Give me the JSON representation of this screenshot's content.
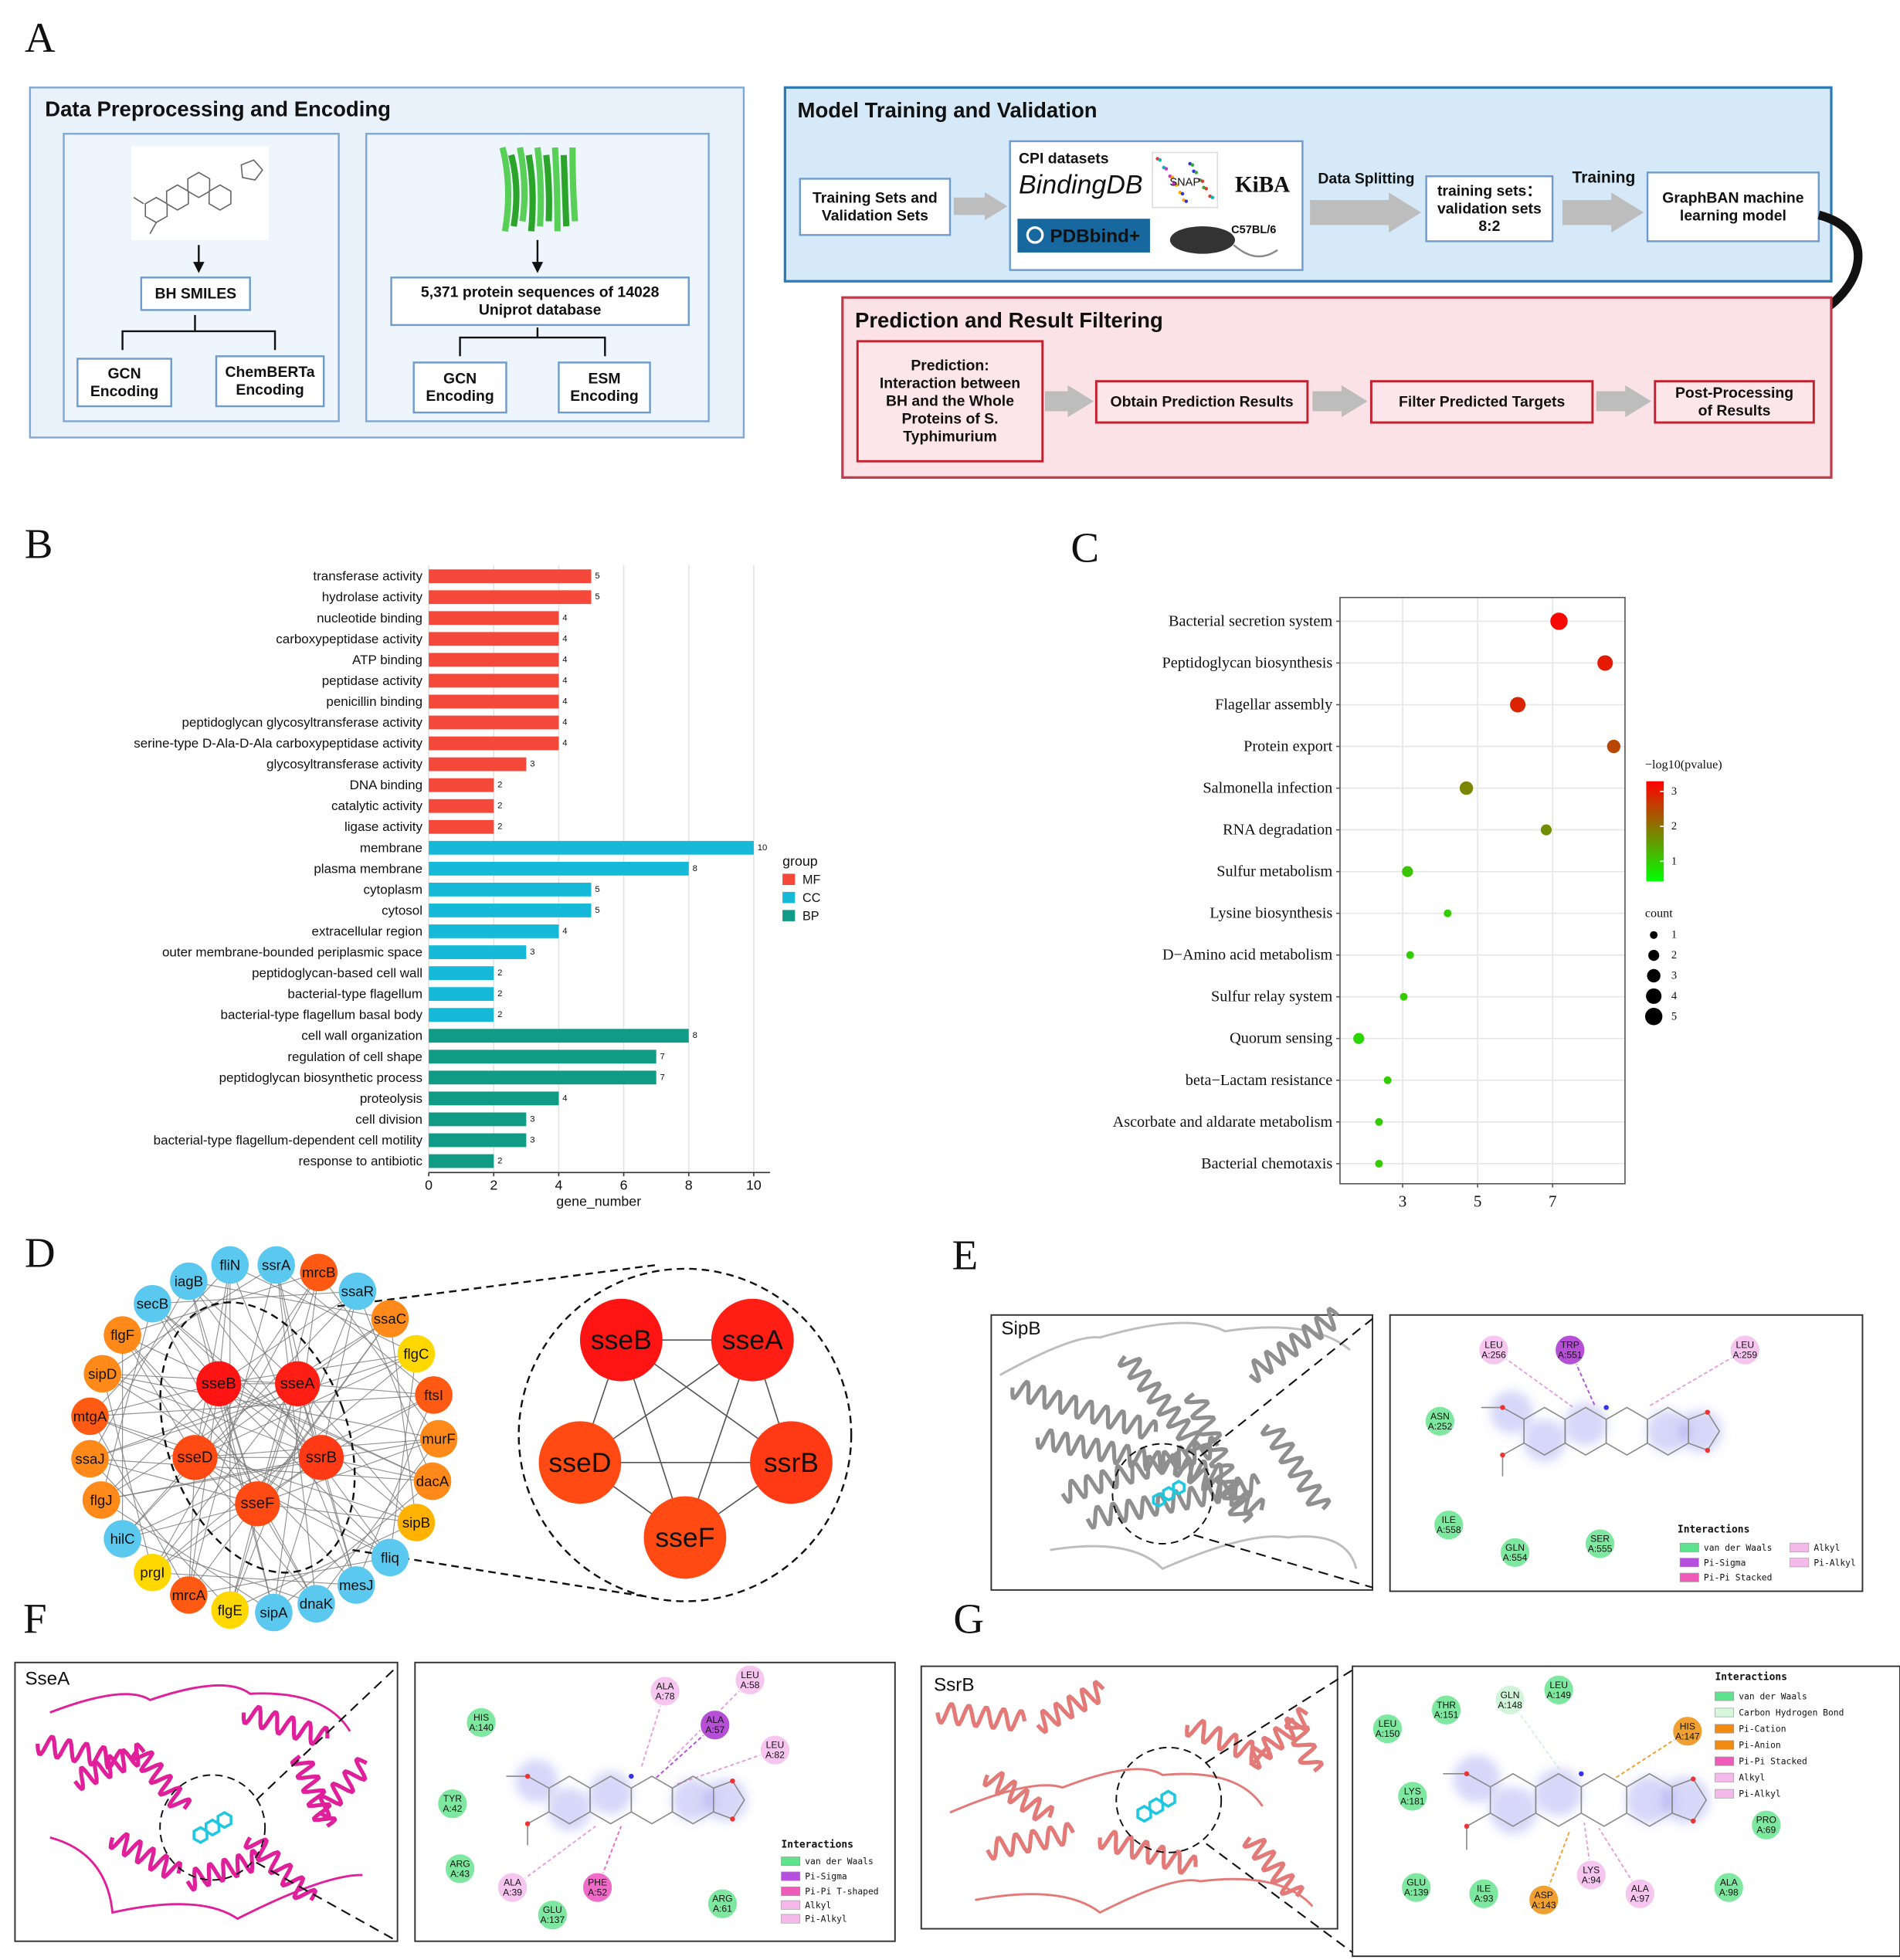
{
  "panel_labels": [
    "A",
    "B",
    "C",
    "D",
    "E",
    "F",
    "G"
  ],
  "workflow": {
    "preprocessing": {
      "title": "Data Preprocessing and Encoding",
      "drug": [
        "BH SMILES"
      ],
      "drug_gcn": [
        "GCN",
        "Encoding"
      ],
      "drug_chemberta": [
        "ChemBERTa",
        "Encoding"
      ],
      "protein": [
        "5,371 protein sequences of 14028",
        "Uniprot database"
      ],
      "protein_gcn": [
        "GCN",
        "Encoding"
      ],
      "protein_esm": [
        "ESM",
        "Encoding"
      ]
    },
    "training": {
      "title": "Model Training and Validation",
      "input": [
        "Training Sets and",
        "Validation Sets"
      ],
      "cpi_title": "CPI datasets",
      "datasets": [
        "BindingDB",
        "SNAP",
        "KiBA",
        "PDBbind+",
        "C57BL/6"
      ],
      "split_label": "Data Splitting",
      "split": [
        "training sets：",
        "validation sets",
        "8:2"
      ],
      "train_label": "Training",
      "model": [
        "GraphBAN machine",
        "learning model"
      ]
    },
    "prediction": {
      "title": "Prediction and Result Filtering",
      "steps": [
        [
          "Prediction:",
          "Interaction between",
          "BH and the Whole",
          "Proteins of S.",
          "Typhimurium"
        ],
        [
          "Obtain Prediction Results"
        ],
        [
          "Filter Predicted Targets"
        ],
        [
          "Post-Processing",
          "of Results"
        ]
      ]
    }
  },
  "chart_data": [
    {
      "type": "bar",
      "orientation": "horizontal",
      "series": [
        {
          "name": "MF",
          "color": "#f4483a",
          "categories": [
            "transferase activity",
            "hydrolase activity",
            "nucleotide binding",
            "carboxypeptidase activity",
            "ATP binding",
            "peptidase activity",
            "penicillin binding",
            "peptidoglycan glycosyltransferase activity",
            "serine-type D-Ala-D-Ala carboxypeptidase activity",
            "glycosyltransferase activity",
            "DNA binding",
            "catalytic activity",
            "ligase activity"
          ],
          "values": [
            5,
            5,
            4,
            4,
            4,
            4,
            4,
            4,
            4,
            3,
            2,
            2,
            2
          ]
        },
        {
          "name": "CC",
          "color": "#17b9d9",
          "categories": [
            "membrane",
            "plasma membrane",
            "cytoplasm",
            "cytosol",
            "extracellular region",
            "outer membrane-bounded periplasmic space",
            "peptidoglycan-based cell wall",
            "bacterial-type flagellum",
            "bacterial-type flagellum basal body"
          ],
          "values": [
            10,
            8,
            5,
            5,
            4,
            3,
            2,
            2,
            2
          ]
        },
        {
          "name": "BP",
          "color": "#0f9b86",
          "categories": [
            "cell wall organization",
            "regulation of cell shape",
            "peptidoglycan biosynthetic process",
            "proteolysis",
            "cell division",
            "bacterial-type flagellum-dependent cell motility",
            "response to antibiotic"
          ],
          "values": [
            8,
            7,
            7,
            4,
            3,
            3,
            2
          ]
        }
      ],
      "xlim": [
        0,
        10.5
      ],
      "xticks": [
        0,
        2,
        4,
        6,
        8,
        10
      ],
      "xlabel": "gene_number",
      "legend_title": "group",
      "grid": true
    },
    {
      "type": "scatter",
      "categories": [
        "Bacterial secretion system",
        "Peptidoglycan biosynthesis",
        "Flagellar assembly",
        "Protein export",
        "Salmonella infection",
        "RNA degradation",
        "Sulfur metabolism",
        "Lysine biosynthesis",
        "D−Amino acid metabolism",
        "Sulfur relay system",
        "Quorum sensing",
        "beta−Lactam resistance",
        "Ascorbate and aldarate metabolism",
        "Bacterial chemotaxis"
      ],
      "values": [
        7.17,
        8.4,
        6.07,
        8.63,
        4.7,
        6.83,
        3.13,
        4.2,
        3.2,
        3.03,
        1.83,
        2.6,
        2.37,
        2.37
      ],
      "neg_log10_pvalue": [
        3.2,
        3.0,
        2.9,
        2.5,
        1.8,
        1.7,
        1.1,
        1.0,
        1.0,
        1.0,
        0.9,
        1.0,
        1.0,
        1.0
      ],
      "count": [
        5,
        4,
        4,
        3,
        3,
        2,
        2,
        1,
        1,
        1,
        2,
        1,
        1,
        1
      ],
      "xlim": [
        1.33,
        8.93
      ],
      "xticks": [
        3,
        5,
        7
      ],
      "color_title": "−log10(pvalue)",
      "color_lim": [
        0.43,
        3.29
      ],
      "color_ticks": [
        1,
        2,
        3
      ],
      "low_color": "#00ff00",
      "high_color": "#ff0000",
      "size_title": "count",
      "size_ticks": [
        1,
        2,
        3,
        4,
        5
      ],
      "grid": true
    }
  ],
  "network": {
    "outer": [
      {
        "name": "fliN",
        "color": "#5ac8ef"
      },
      {
        "name": "ssrA",
        "color": "#5ac8ef"
      },
      {
        "name": "mrcB",
        "color": "#ff5a14"
      },
      {
        "name": "ssaR",
        "color": "#5ac8ef"
      },
      {
        "name": "ssaC",
        "color": "#ff8a1a"
      },
      {
        "name": "flgC",
        "color": "#ffd800"
      },
      {
        "name": "ftsI",
        "color": "#ff5a14"
      },
      {
        "name": "murF",
        "color": "#ff8a1a"
      },
      {
        "name": "dacA",
        "color": "#ff8a1a"
      },
      {
        "name": "sipB",
        "color": "#ffb300"
      },
      {
        "name": "fliq",
        "color": "#5ac8ef"
      },
      {
        "name": "mesJ",
        "color": "#5ac8ef"
      },
      {
        "name": "dnaK",
        "color": "#5ac8ef"
      },
      {
        "name": "sipA",
        "color": "#5ac8ef"
      },
      {
        "name": "flgE",
        "color": "#ffd800"
      },
      {
        "name": "mrcA",
        "color": "#ff5a14"
      },
      {
        "name": "prgI",
        "color": "#ffd800"
      },
      {
        "name": "hilC",
        "color": "#5ac8ef"
      },
      {
        "name": "flgJ",
        "color": "#ff8a1a"
      },
      {
        "name": "ssaJ",
        "color": "#ff8a1a"
      },
      {
        "name": "mtgA",
        "color": "#ff5a14"
      },
      {
        "name": "sipD",
        "color": "#ff8a1a"
      },
      {
        "name": "flgF",
        "color": "#ff8a1a"
      },
      {
        "name": "secB",
        "color": "#5ac8ef"
      },
      {
        "name": "iagB",
        "color": "#5ac8ef"
      }
    ],
    "core": [
      {
        "name": "sseB",
        "color": "#ff1414"
      },
      {
        "name": "sseA",
        "color": "#ff1e14"
      },
      {
        "name": "sseD",
        "color": "#ff4a14"
      },
      {
        "name": "ssrB",
        "color": "#ff3a14"
      },
      {
        "name": "sseF",
        "color": "#ff4a14"
      }
    ]
  },
  "docking": [
    {
      "protein": "SipB",
      "residues": [
        {
          "name": "LEU",
          "id": "A:256",
          "color": "#f7c6f0"
        },
        {
          "name": "TRP",
          "id": "A:551",
          "color": "#b44fd6"
        },
        {
          "name": "LEU",
          "id": "A:259",
          "color": "#f7c6f0"
        },
        {
          "name": "ASN",
          "id": "A:252",
          "color": "#7ee8a0"
        },
        {
          "name": "ILE",
          "id": "A:558",
          "color": "#7ee8a0"
        },
        {
          "name": "GLN",
          "id": "A:554",
          "color": "#7ee8a0"
        },
        {
          "name": "SER",
          "id": "A:555",
          "color": "#7ee8a0"
        }
      ],
      "legend_title": "Interactions",
      "legend": [
        {
          "label": "van der Waals",
          "color": "#5fe28e"
        },
        {
          "label": "Pi-Sigma",
          "color": "#b64fe0"
        },
        {
          "label": "Pi-Pi Stacked",
          "color": "#f05ab8"
        },
        {
          "label": "Alkyl",
          "color": "#f5b8ea"
        },
        {
          "label": "Pi-Alkyl",
          "color": "#f5b8ea"
        }
      ]
    },
    {
      "protein": "SseA",
      "residues": [
        {
          "name": "HIS",
          "id": "A:140",
          "color": "#7ee8a0"
        },
        {
          "name": "ALA",
          "id": "A:78",
          "color": "#f7c6f0"
        },
        {
          "name": "LEU",
          "id": "A:58",
          "color": "#f7c6f0"
        },
        {
          "name": "ALA",
          "id": "A:57",
          "color": "#b44fd6"
        },
        {
          "name": "LEU",
          "id": "A:82",
          "color": "#f7c6f0"
        },
        {
          "name": "TYR",
          "id": "A:42",
          "color": "#7ee8a0"
        },
        {
          "name": "ARG",
          "id": "A:43",
          "color": "#7ee8a0"
        },
        {
          "name": "ALA",
          "id": "A:39",
          "color": "#f7c6f0"
        },
        {
          "name": "PHE",
          "id": "A:52",
          "color": "#f06ac8"
        },
        {
          "name": "GLU",
          "id": "A:137",
          "color": "#7ee8a0"
        },
        {
          "name": "ARG",
          "id": "A:61",
          "color": "#7ee8a0"
        }
      ],
      "legend_title": "Interactions",
      "legend": [
        {
          "label": "van der Waals",
          "color": "#5fe28e"
        },
        {
          "label": "Pi-Sigma",
          "color": "#b64fe0"
        },
        {
          "label": "Pi-Pi T-shaped",
          "color": "#f05ab8"
        },
        {
          "label": "Alkyl",
          "color": "#f5b8ea"
        },
        {
          "label": "Pi-Alkyl",
          "color": "#f5b8ea"
        }
      ]
    },
    {
      "protein": "SsrB",
      "residues": [
        {
          "name": "GLN",
          "id": "A:148",
          "color": "#d2f5da"
        },
        {
          "name": "LEU",
          "id": "A:149",
          "color": "#7ee8a0"
        },
        {
          "name": "THR",
          "id": "A:151",
          "color": "#7ee8a0"
        },
        {
          "name": "LEU",
          "id": "A:150",
          "color": "#7ee8a0"
        },
        {
          "name": "HIS",
          "id": "A:147",
          "color": "#f0a030"
        },
        {
          "name": "LYS",
          "id": "A:181",
          "color": "#7ee8a0"
        },
        {
          "name": "PRO",
          "id": "A:69",
          "color": "#7ee8a0"
        },
        {
          "name": "GLU",
          "id": "A:139",
          "color": "#7ee8a0"
        },
        {
          "name": "ILE",
          "id": "A:93",
          "color": "#7ee8a0"
        },
        {
          "name": "ASP",
          "id": "A:143",
          "color": "#f0a030"
        },
        {
          "name": "LYS",
          "id": "A:94",
          "color": "#f7c6f0"
        },
        {
          "name": "ALA",
          "id": "A:97",
          "color": "#f7c6f0"
        },
        {
          "name": "ALA",
          "id": "A:98",
          "color": "#7ee8a0"
        }
      ],
      "legend_title": "Interactions",
      "legend": [
        {
          "label": "van der Waals",
          "color": "#5fe28e"
        },
        {
          "label": "Carbon Hydrogen Bond",
          "color": "#d7f7dc"
        },
        {
          "label": "Pi-Cation",
          "color": "#f08a10"
        },
        {
          "label": "Pi-Anion",
          "color": "#f08a10"
        },
        {
          "label": "Pi-Pi Stacked",
          "color": "#f05ab8"
        },
        {
          "label": "Alkyl",
          "color": "#f5b8ea"
        },
        {
          "label": "Pi-Alkyl",
          "color": "#f5b8ea"
        }
      ]
    }
  ]
}
